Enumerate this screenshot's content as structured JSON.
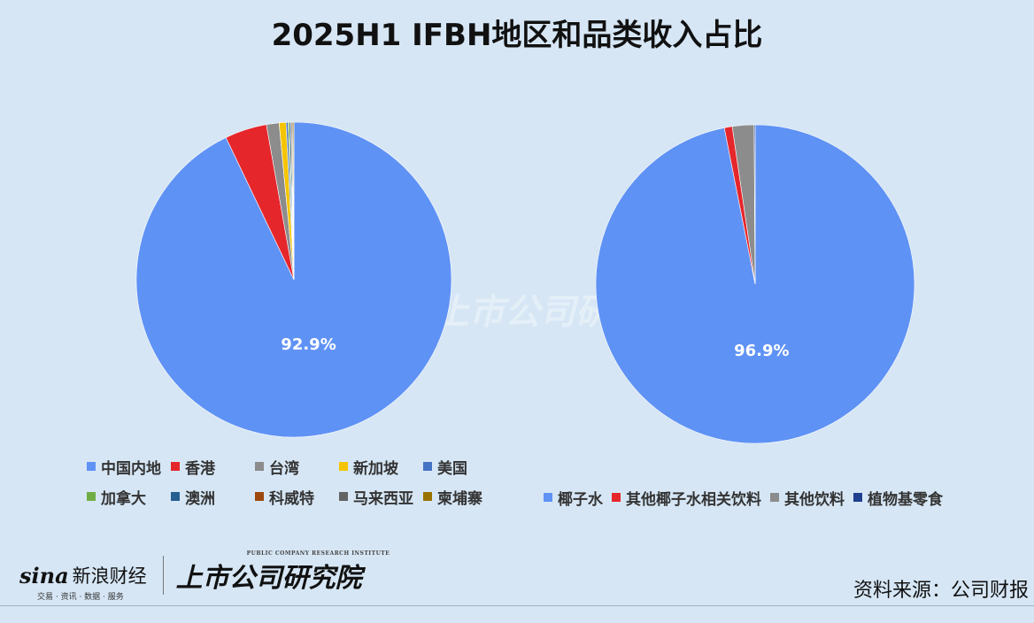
{
  "title": "2025H1 IFBH地区和品类收入占比",
  "chart_data": [
    {
      "type": "pie",
      "title": "",
      "labels": [
        "中国内地",
        "香港",
        "台湾",
        "新加坡",
        "美国",
        "加拿大",
        "澳洲",
        "科威特",
        "马来西亚",
        "柬埔寨"
      ],
      "values": [
        92.9,
        4.3,
        1.3,
        0.7,
        0.2,
        0.15,
        0.15,
        0.1,
        0.1,
        0.1
      ],
      "colors": [
        "#5f92f5",
        "#e5262b",
        "#8c8c8c",
        "#f5c400",
        "#4472c4",
        "#70ad47",
        "#255e91",
        "#9e480e",
        "#636363",
        "#997300"
      ],
      "data_labels": [
        "92.9%"
      ]
    },
    {
      "type": "pie",
      "title": "",
      "labels": [
        "椰子水",
        "其他椰子水相关饮料",
        "其他饮料",
        "植物基零食"
      ],
      "values": [
        96.9,
        0.8,
        2.2,
        0.1
      ],
      "colors": [
        "#5f92f5",
        "#e5262b",
        "#8c8c8c",
        "#1f3f8f"
      ],
      "data_labels": [
        "96.9%"
      ]
    }
  ],
  "footer": {
    "sina_logo": "sina",
    "sina_name": "新浪财经",
    "sina_sub": "交易 · 资讯 · 数据 · 服务",
    "inst_logo": "上市公司研究院",
    "inst_sub": "PUBLIC COMPANY RESEARCH INSTITUTE",
    "source": "资料来源：公司财报"
  }
}
